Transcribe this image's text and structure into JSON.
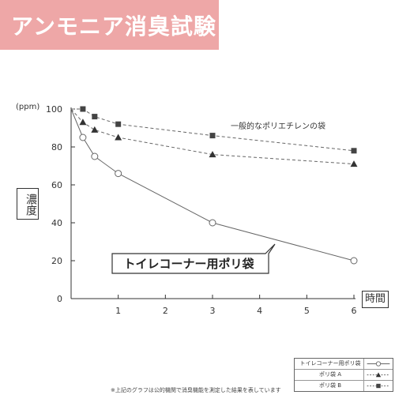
{
  "banner": {
    "title": "アンモニア消臭試験"
  },
  "axis": {
    "unit": "(ppm)",
    "ylabel": "濃度",
    "xlabel": "時間"
  },
  "note": "※上記のグラフは公的機関で消臭機能を測定した結果を表しています",
  "colors": {
    "banner": "#eea7a7",
    "line": "#666666",
    "text": "#333333"
  },
  "chart_data": {
    "type": "line",
    "xlim": [
      0,
      6
    ],
    "ylim": [
      0,
      100
    ],
    "xticks": [
      1,
      2,
      3,
      4,
      5,
      6
    ],
    "yticks": [
      0,
      20,
      40,
      60,
      80,
      100
    ],
    "grid": false,
    "series": [
      {
        "name": "トイレコーナー用ポリ袋",
        "marker": "circle",
        "style": "solid",
        "x": [
          0,
          0.25,
          0.5,
          1,
          3,
          6
        ],
        "y": [
          100,
          85,
          75,
          66,
          40,
          20
        ]
      },
      {
        "name": "ポリ袋 A",
        "marker": "triangle",
        "style": "dashed",
        "x": [
          0,
          0.25,
          0.5,
          1,
          3,
          6
        ],
        "y": [
          100,
          93,
          89,
          85,
          76,
          71
        ]
      },
      {
        "name": "ポリ袋 B",
        "marker": "square",
        "style": "dashed",
        "x": [
          0,
          0.25,
          0.5,
          1,
          3,
          6
        ],
        "y": [
          100,
          100,
          96,
          92,
          86,
          78
        ]
      }
    ],
    "annotations": {
      "dashed": "一般的なポリエチレンの袋",
      "callout": "トイレコーナー用ポリ袋"
    }
  }
}
